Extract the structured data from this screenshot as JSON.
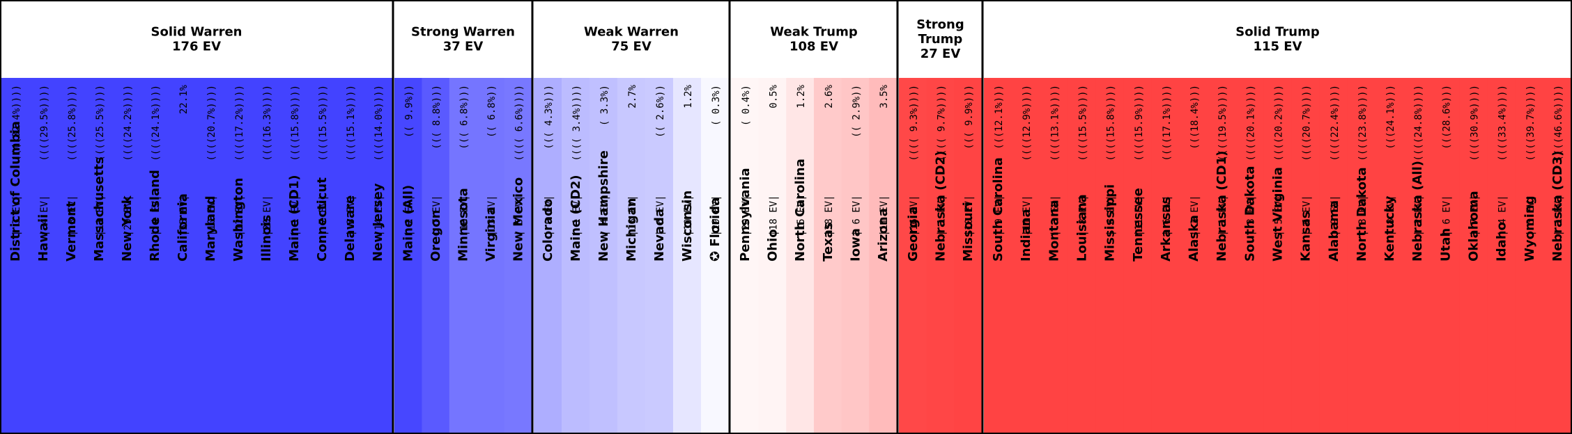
{
  "chart_data": {
    "type": "table",
    "groups": [
      {
        "title": [
          "Solid Warren",
          "176 EV"
        ],
        "color": "#4343ff",
        "states": [
          {
            "name": "District of Columbia",
            "ev": "3",
            "margin": "((((82.4%))))",
            "color": "#4343ff"
          },
          {
            "name": "Hawaii",
            "ev": "4",
            "margin": "((((29.5%))))",
            "color": "#4343ff"
          },
          {
            "name": "Vermont",
            "ev": "3",
            "margin": "((((25.8%))))",
            "color": "#4343ff"
          },
          {
            "name": "Massachusetts",
            "ev": "11",
            "margin": "((((25.5%))))",
            "color": "#4343ff"
          },
          {
            "name": "New York",
            "ev": "29",
            "margin": "((((24.2%))))",
            "color": "#4343ff"
          },
          {
            "name": "Rhode Island",
            "ev": "4",
            "margin": "((((24.1%))))",
            "color": "#4343ff"
          },
          {
            "name": "California",
            "ev": "55",
            "margin": "22.1%",
            "color": "#4343ff"
          },
          {
            "name": "Maryland",
            "ev": "10",
            "margin": "((((20.7%))))",
            "color": "#4343ff"
          },
          {
            "name": "Washington",
            "ev": "12",
            "margin": "((((17.2%))))",
            "color": "#4343ff"
          },
          {
            "name": "Illinois",
            "ev": "20",
            "margin": "((((16.3%))))",
            "color": "#4343ff"
          },
          {
            "name": "Maine (CD1)",
            "ev": "1",
            "margin": "((((15.8%))))",
            "color": "#4343ff"
          },
          {
            "name": "Connecticut",
            "ev": "7",
            "margin": "((((15.5%))))",
            "color": "#4343ff"
          },
          {
            "name": "Delaware",
            "ev": "3",
            "margin": "((((15.1%))))",
            "color": "#4343ff"
          },
          {
            "name": "New Jersey",
            "ev": "14",
            "margin": "((((14.0%))))",
            "color": "#4343ff"
          }
        ]
      },
      {
        "title": [
          "Strong Warren",
          "37 EV"
        ],
        "color": "#5a5aff",
        "states": [
          {
            "name": "Maine (All)",
            "ev": "2",
            "margin": "(( 9.9%))",
            "color": "#4747ff"
          },
          {
            "name": "Oregon",
            "ev": "7",
            "margin": "((( 8.8%)))",
            "color": "#5a5aff"
          },
          {
            "name": "Minnesota",
            "ev": "10",
            "margin": "((( 6.8%)))",
            "color": "#7575ff"
          },
          {
            "name": "Virginia",
            "ev": "13",
            "margin": "(( 6.8%))",
            "color": "#7575ff"
          },
          {
            "name": "New Mexico",
            "ev": "5",
            "margin": "(((( 6.6%))))",
            "color": "#7878ff"
          }
        ]
      },
      {
        "title": [
          "Weak Warren",
          "75 EV"
        ],
        "color": "#c0c0ff",
        "states": [
          {
            "name": "Colorado",
            "ev": "9",
            "margin": "((( 4.3%)))",
            "color": "#aeaeff"
          },
          {
            "name": "Maine (CD2)",
            "ev": "1",
            "margin": "(((( 3.4%))))",
            "color": "#bcbcff"
          },
          {
            "name": "New Hampshire",
            "ev": "4",
            "margin": "( 3.3%)",
            "color": "#c0c0ff"
          },
          {
            "name": "Michigan",
            "ev": "16",
            "margin": "2.7%",
            "color": "#c8c8ff"
          },
          {
            "name": "Nevada",
            "ev": "6",
            "margin": "(( 2.6%))",
            "color": "#cacaff"
          },
          {
            "name": "Wisconsin",
            "ev": "10",
            "margin": "1.2%",
            "color": "#e6e6ff"
          },
          {
            "name": "✪ Florida",
            "ev": "29",
            "margin": "( 0.3%)",
            "color": "#f8f8ff"
          }
        ]
      },
      {
        "title": [
          "Weak Trump",
          "108 EV"
        ],
        "color": "#ffdede",
        "states": [
          {
            "name": "Pennsylvania",
            "ev": "20",
            "margin": "( 0.4%)",
            "color": "#fff6f6"
          },
          {
            "name": "Ohio",
            "ev": "18",
            "margin": "0.5%",
            "color": "#fff4f4"
          },
          {
            "name": "North Carolina",
            "ev": "15",
            "margin": "1.2%",
            "color": "#ffe6e6"
          },
          {
            "name": "Texas",
            "ev": "38",
            "margin": "2.6%",
            "color": "#ffcaca"
          },
          {
            "name": "Iowa",
            "ev": "6",
            "margin": "(( 2.9%))",
            "color": "#ffc6c6"
          },
          {
            "name": "Arizona",
            "ev": "11",
            "margin": "3.5%",
            "color": "#ffbbbb"
          }
        ]
      },
      {
        "title": [
          "Strong",
          "Trump",
          "27 EV"
        ],
        "color": "#ff4646",
        "states": [
          {
            "name": "Georgia",
            "ev": "16",
            "margin": "(((( 9.3%))))",
            "color": "#ff4848"
          },
          {
            "name": "Nebraska (CD2)",
            "ev": "1",
            "margin": "(((( 9.7%))))",
            "color": "#ff4646"
          },
          {
            "name": "Missouri",
            "ev": "10",
            "margin": "((( 9.9%)))",
            "color": "#ff4444"
          }
        ]
      },
      {
        "title": [
          "Solid Trump",
          "115 EV"
        ],
        "color": "#ff4343",
        "states": [
          {
            "name": "South Carolina",
            "ev": "9",
            "margin": "(((12.1%)))",
            "color": "#ff4343"
          },
          {
            "name": "Indiana",
            "ev": "11",
            "margin": "((((12.9%))))",
            "color": "#ff4343"
          },
          {
            "name": "Montana",
            "ev": "3",
            "margin": "((((13.1%))))",
            "color": "#ff4343"
          },
          {
            "name": "Louisiana",
            "ev": "8",
            "margin": "((((15.5%))))",
            "color": "#ff4343"
          },
          {
            "name": "Mississippi",
            "ev": "6",
            "margin": "((((15.8%))))",
            "color": "#ff4343"
          },
          {
            "name": "Tennessee",
            "ev": "11",
            "margin": "((((15.9%))))",
            "color": "#ff4343"
          },
          {
            "name": "Arkansas",
            "ev": "6",
            "margin": "((((17.1%))))",
            "color": "#ff4343"
          },
          {
            "name": "Alaska",
            "ev": "3",
            "margin": "(((18.4%)))",
            "color": "#ff4343"
          },
          {
            "name": "Nebraska (CD1)",
            "ev": "1",
            "margin": "((((19.5%))))",
            "color": "#ff4343"
          },
          {
            "name": "South Dakota",
            "ev": "3",
            "margin": "((((20.1%))))",
            "color": "#ff4343"
          },
          {
            "name": "West Virginia",
            "ev": "5",
            "margin": "((((20.2%))))",
            "color": "#ff4343"
          },
          {
            "name": "Kansas",
            "ev": "6",
            "margin": "((((20.7%))))",
            "color": "#ff4343"
          },
          {
            "name": "Alabama",
            "ev": "9",
            "margin": "((((22.4%))))",
            "color": "#ff4343"
          },
          {
            "name": "North Dakota",
            "ev": "3",
            "margin": "((((23.8%))))",
            "color": "#ff4343"
          },
          {
            "name": "Kentucky",
            "ev": "8",
            "margin": "(((24.1%)))",
            "color": "#ff4343"
          },
          {
            "name": "Nebraska (All)",
            "ev": "2",
            "margin": "((((24.8%))))",
            "color": "#ff4343"
          },
          {
            "name": "Utah",
            "ev": "6",
            "margin": "(((28.6%)))",
            "color": "#ff4343"
          },
          {
            "name": "Oklahoma",
            "ev": "7",
            "margin": "((((30.9%))))",
            "color": "#ff4343"
          },
          {
            "name": "Idaho",
            "ev": "4",
            "margin": "((((33.4%))))",
            "color": "#ff4343"
          },
          {
            "name": "Wyoming",
            "ev": "3",
            "margin": "((((39.7%))))",
            "color": "#ff4343"
          },
          {
            "name": "Nebraska (CD3)",
            "ev": "1",
            "margin": "((((46.6%))))",
            "color": "#ff4343"
          }
        ]
      }
    ]
  }
}
